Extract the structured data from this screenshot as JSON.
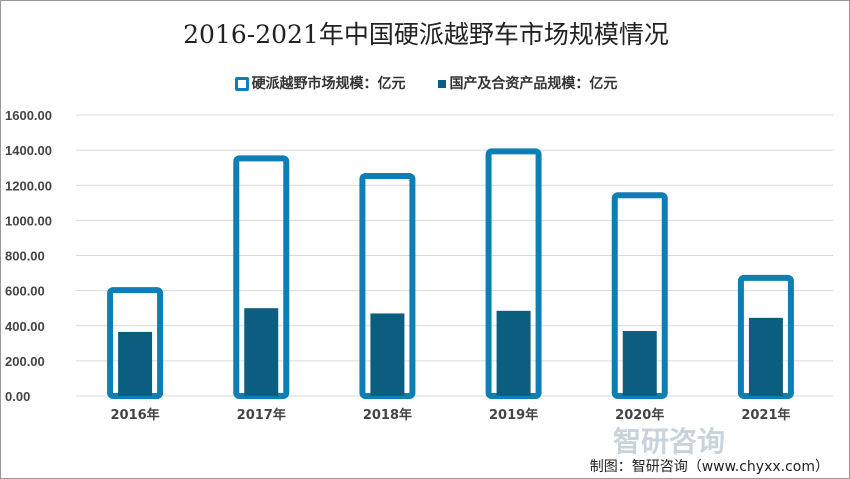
{
  "chart_data": {
    "type": "bar",
    "title": "2016-2021年中国硬派越野车市场规模情况",
    "categories": [
      "2016年",
      "2017年",
      "2018年",
      "2019年",
      "2020年",
      "2021年"
    ],
    "series": [
      {
        "name": "硬派越野市场规模：亿元",
        "values": [
          620,
          1370,
          1270,
          1410,
          1160,
          690
        ],
        "color": "#0e7fb5",
        "style": "outline"
      },
      {
        "name": "国产及合资产品规模：亿元",
        "values": [
          365,
          500,
          470,
          485,
          370,
          445
        ],
        "color": "#0b5e80",
        "style": "filled"
      }
    ],
    "yticks": [
      "0.00",
      "200.00",
      "400.00",
      "600.00",
      "800.00",
      "1000.00",
      "1200.00",
      "1400.00",
      "1600.00"
    ],
    "ylim": [
      0,
      1600
    ],
    "grid": true,
    "legend": "top"
  },
  "source": "制图：智研咨询（www.chyxx.com）",
  "watermark": "智研咨询"
}
